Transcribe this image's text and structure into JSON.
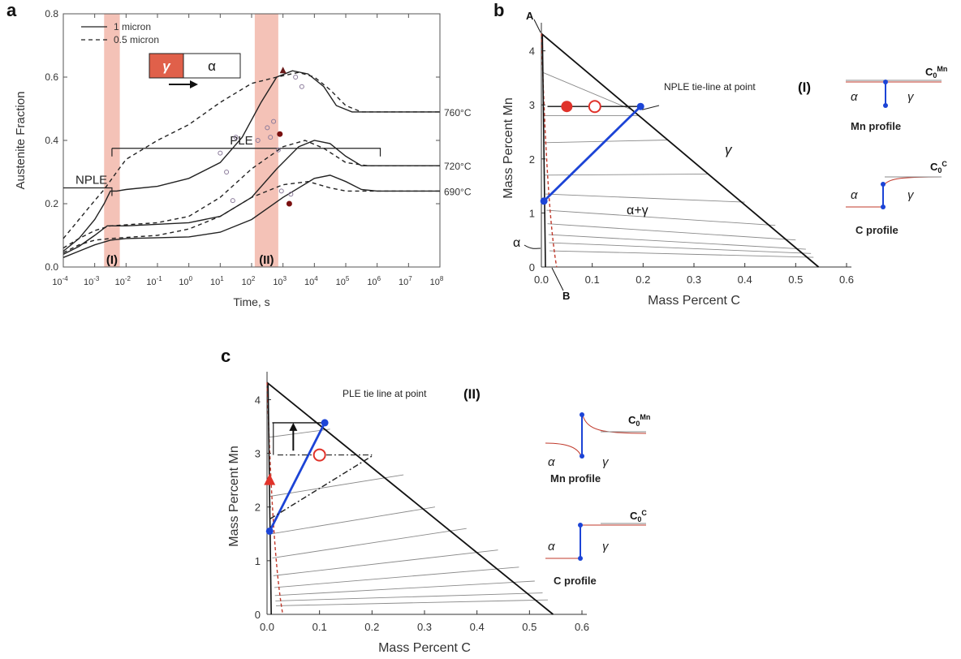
{
  "panel_letters": [
    "a",
    "b",
    "c"
  ],
  "chart_data": [
    {
      "panel": "a",
      "type": "line",
      "xscale": "log",
      "xlabel": "Time, s",
      "ylabel": "Austenite Fraction",
      "xlim_exp": [
        -4,
        8
      ],
      "ylim": [
        0,
        0.8
      ],
      "x_tick_base": "10",
      "x_tick_exponents": [
        "-4",
        "-3",
        "-2",
        "-1",
        "0",
        "1",
        "2",
        "3",
        "4",
        "5",
        "6",
        "7",
        "8"
      ],
      "y_tick_values": [
        0,
        0.2,
        0.4,
        0.6,
        0.8
      ],
      "y_tick_labels": [
        "0.0",
        "0.2",
        "0.4",
        "0.6",
        "0.8"
      ],
      "legend": [
        {
          "label": "1 micron",
          "style": "solid"
        },
        {
          "label": "0.5 micron",
          "style": "dashed"
        }
      ],
      "inset_labels": [
        "γ",
        "α"
      ],
      "shaded_regions": [
        {
          "label": "(I)",
          "x_exp": [
            -2.7,
            -2.2
          ]
        },
        {
          "label": "(II)",
          "x_exp": [
            2.1,
            2.85
          ]
        }
      ],
      "brackets": [
        {
          "label": "NPLE",
          "x_exp": [
            -4,
            -2.45
          ],
          "y": 0.25
        },
        {
          "label": "PLE",
          "x_exp": [
            -2.45,
            6.1
          ],
          "y": 0.375
        }
      ],
      "temperature_labels": [
        {
          "label": "760°C",
          "y": 0.49
        },
        {
          "label": "720°C",
          "y": 0.32
        },
        {
          "label": "690°C",
          "y": 0.24
        }
      ],
      "series": [
        {
          "name": "760°C 1 micron",
          "style": "solid",
          "points": [
            [
              -4,
              0.05
            ],
            [
              -3.5,
              0.09
            ],
            [
              -3,
              0.15
            ],
            [
              -2.7,
              0.2
            ],
            [
              -2.5,
              0.24
            ],
            [
              -2.3,
              0.24
            ],
            [
              -2,
              0.245
            ],
            [
              -1,
              0.255
            ],
            [
              0,
              0.28
            ],
            [
              1,
              0.33
            ],
            [
              1.7,
              0.41
            ],
            [
              2.3,
              0.52
            ],
            [
              2.8,
              0.6
            ],
            [
              3.3,
              0.62
            ],
            [
              3.8,
              0.61
            ],
            [
              4.3,
              0.57
            ],
            [
              4.7,
              0.51
            ],
            [
              5.2,
              0.49
            ],
            [
              8,
              0.49
            ]
          ]
        },
        {
          "name": "760°C 0.5 micron",
          "style": "dashed",
          "points": [
            [
              -4,
              0.09
            ],
            [
              -3.5,
              0.15
            ],
            [
              -3,
              0.21
            ],
            [
              -2.7,
              0.245
            ],
            [
              -2.3,
              0.3
            ],
            [
              -2,
              0.34
            ],
            [
              -1,
              0.4
            ],
            [
              0,
              0.45
            ],
            [
              1,
              0.52
            ],
            [
              2,
              0.58
            ],
            [
              2.8,
              0.6
            ],
            [
              3.5,
              0.615
            ],
            [
              4,
              0.6
            ],
            [
              4.5,
              0.56
            ],
            [
              5,
              0.51
            ],
            [
              5.5,
              0.49
            ],
            [
              8,
              0.49
            ]
          ]
        },
        {
          "name": "720°C 1 micron",
          "style": "solid",
          "points": [
            [
              -4,
              0.04
            ],
            [
              -3.5,
              0.065
            ],
            [
              -3,
              0.1
            ],
            [
              -2.6,
              0.13
            ],
            [
              -2,
              0.13
            ],
            [
              0,
              0.14
            ],
            [
              1,
              0.16
            ],
            [
              2,
              0.22
            ],
            [
              2.8,
              0.31
            ],
            [
              3.5,
              0.38
            ],
            [
              4,
              0.4
            ],
            [
              4.5,
              0.39
            ],
            [
              5,
              0.35
            ],
            [
              5.5,
              0.32
            ],
            [
              8,
              0.32
            ]
          ]
        },
        {
          "name": "720°C 0.5 micron",
          "style": "dashed",
          "points": [
            [
              -4,
              0.06
            ],
            [
              -3.5,
              0.09
            ],
            [
              -3,
              0.115
            ],
            [
              -2.5,
              0.13
            ],
            [
              -1,
              0.14
            ],
            [
              0,
              0.16
            ],
            [
              1,
              0.22
            ],
            [
              2,
              0.31
            ],
            [
              3,
              0.38
            ],
            [
              3.7,
              0.4
            ],
            [
              4.3,
              0.375
            ],
            [
              5,
              0.33
            ],
            [
              5.7,
              0.32
            ],
            [
              8,
              0.32
            ]
          ]
        },
        {
          "name": "690°C 1 micron",
          "style": "solid",
          "points": [
            [
              -4,
              0.03
            ],
            [
              -3.5,
              0.05
            ],
            [
              -3,
              0.07
            ],
            [
              -2.5,
              0.085
            ],
            [
              -2,
              0.09
            ],
            [
              0,
              0.095
            ],
            [
              1,
              0.11
            ],
            [
              2,
              0.15
            ],
            [
              3,
              0.22
            ],
            [
              4,
              0.28
            ],
            [
              4.5,
              0.29
            ],
            [
              5,
              0.27
            ],
            [
              5.5,
              0.245
            ],
            [
              6,
              0.24
            ],
            [
              8,
              0.24
            ]
          ]
        },
        {
          "name": "690°C 0.5 micron",
          "style": "dashed",
          "points": [
            [
              -4,
              0.045
            ],
            [
              -3.5,
              0.07
            ],
            [
              -3,
              0.085
            ],
            [
              -2.5,
              0.09
            ],
            [
              -1,
              0.1
            ],
            [
              0,
              0.12
            ],
            [
              1,
              0.16
            ],
            [
              2,
              0.22
            ],
            [
              3,
              0.26
            ],
            [
              3.8,
              0.27
            ],
            [
              4.5,
              0.25
            ],
            [
              5,
              0.24
            ],
            [
              8,
              0.24
            ]
          ]
        }
      ],
      "markers": [
        {
          "x_exp": 3,
          "y": 0.62,
          "shape": "triangle"
        },
        {
          "x_exp": 2.9,
          "y": 0.42,
          "shape": "dot"
        },
        {
          "x_exp": 3.2,
          "y": 0.2,
          "shape": "dot"
        }
      ]
    },
    {
      "panel": "b",
      "type": "scatter",
      "xlabel": "Mass Percent C",
      "ylabel": "Mass Percent Mn",
      "xlim": [
        0,
        0.6
      ],
      "ylim": [
        0,
        4.4
      ],
      "x_tick_values": [
        0,
        0.1,
        0.2,
        0.3,
        0.4,
        0.5,
        0.6
      ],
      "x_tick_labels": [
        "0.0",
        "0.1",
        "0.2",
        "0.3",
        "0.4",
        "0.5",
        "0.6"
      ],
      "y_tick_values": [
        0,
        1,
        2,
        3,
        4
      ],
      "y_tick_labels": [
        "0",
        "1",
        "2",
        "3",
        "4"
      ],
      "phase_boundary": [
        [
          0,
          4.32
        ],
        [
          0.545,
          0
        ]
      ],
      "alpha_boundary": [
        [
          0,
          4.32
        ],
        [
          0.03,
          0
        ]
      ],
      "tie_lines": [
        [
          [
            0.003,
            3.6
          ],
          [
            0.18,
            2.9
          ]
        ],
        [
          [
            0.004,
            2.8
          ],
          [
            0.19,
            2.8
          ]
        ],
        [
          [
            0.005,
            2.3
          ],
          [
            0.25,
            2.35
          ]
        ],
        [
          [
            0.006,
            1.7
          ],
          [
            0.33,
            1.72
          ]
        ],
        [
          [
            0.008,
            1.35
          ],
          [
            0.4,
            1.2
          ]
        ],
        [
          [
            0.01,
            1.05
          ],
          [
            0.46,
            0.77
          ]
        ],
        [
          [
            0.012,
            0.8
          ],
          [
            0.5,
            0.5
          ]
        ],
        [
          [
            0.014,
            0.6
          ],
          [
            0.52,
            0.33
          ]
        ],
        [
          [
            0.015,
            0.45
          ],
          [
            0.53,
            0.25
          ]
        ],
        [
          [
            0.016,
            0.3
          ],
          [
            0.535,
            0.18
          ]
        ]
      ],
      "highlight_tie_line": {
        "from": [
          0.005,
          1.22
        ],
        "to": [
          0.195,
          2.97
        ],
        "label": "NPLE tie-line at point",
        "roman": "(I)"
      },
      "start_point_filled": [
        0.05,
        2.97
      ],
      "start_point_open": [
        0.105,
        2.97
      ],
      "horizontal_line": {
        "from": [
          0.012,
          2.97
        ],
        "to": [
          0.195,
          2.97
        ]
      },
      "labels": {
        "A": "A",
        "B": "B",
        "alpha": "α",
        "gamma": "γ",
        "two_phase": "α+γ"
      }
    },
    {
      "panel": "c",
      "type": "scatter",
      "xlabel": "Mass Percent C",
      "ylabel": "Mass Percent Mn",
      "xlim": [
        0,
        0.6
      ],
      "ylim": [
        0,
        4.4
      ],
      "x_tick_values": [
        0,
        0.1,
        0.2,
        0.3,
        0.4,
        0.5,
        0.6
      ],
      "x_tick_labels": [
        "0.0",
        "0.1",
        "0.2",
        "0.3",
        "0.4",
        "0.5",
        "0.6"
      ],
      "y_tick_values": [
        0,
        1,
        2,
        3,
        4
      ],
      "y_tick_labels": [
        "0",
        "1",
        "2",
        "3",
        "4"
      ],
      "phase_boundary": [
        [
          0,
          4.32
        ],
        [
          0.545,
          0
        ]
      ],
      "alpha_boundary": [
        [
          0,
          4.32
        ],
        [
          0.03,
          0
        ]
      ],
      "tie_lines": [
        [
          [
            0.004,
            3.3
          ],
          [
            0.12,
            3.45
          ]
        ],
        [
          [
            0.006,
            2.2
          ],
          [
            0.26,
            2.6
          ]
        ],
        [
          [
            0.008,
            1.5
          ],
          [
            0.32,
            2.0
          ]
        ],
        [
          [
            0.01,
            1.05
          ],
          [
            0.38,
            1.6
          ]
        ],
        [
          [
            0.012,
            0.72
          ],
          [
            0.44,
            1.2
          ]
        ],
        [
          [
            0.014,
            0.5
          ],
          [
            0.48,
            0.88
          ]
        ],
        [
          [
            0.015,
            0.35
          ],
          [
            0.51,
            0.62
          ]
        ],
        [
          [
            0.016,
            0.25
          ],
          [
            0.525,
            0.4
          ]
        ],
        [
          [
            0.017,
            0.16
          ],
          [
            0.535,
            0.27
          ]
        ]
      ],
      "highlight_tie_line": {
        "from": [
          0.005,
          1.55
        ],
        "to": [
          0.11,
          3.57
        ],
        "label": "PLE tie line at point",
        "roman": "(II)"
      },
      "dashdot_tie_line": {
        "from": [
          0.006,
          1.78
        ],
        "to": [
          0.2,
          2.95
        ]
      },
      "start_point_filled": [
        0.005,
        2.5
      ],
      "start_point_open": [
        0.1,
        2.97
      ],
      "horizontal_line": {
        "from": [
          0.01,
          3.57
        ],
        "to": [
          0.11,
          3.57
        ]
      },
      "dashdot_horizontal": {
        "from": [
          0.02,
          2.97
        ],
        "to": [
          0.2,
          2.97
        ]
      }
    }
  ],
  "profiles": {
    "b_mn": {
      "label": "Mn profile",
      "left": "α",
      "right": "γ",
      "c0": "C",
      "c0_sub": "0",
      "c0_sup": "Mn"
    },
    "b_c": {
      "label": "C profile",
      "left": "α",
      "right": "γ",
      "c0": "C",
      "c0_sub": "0",
      "c0_sup": "C"
    },
    "c_mn": {
      "label": "Mn profile",
      "left": "α",
      "right": "γ",
      "c0": "C",
      "c0_sub": "0",
      "c0_sup": "Mn"
    },
    "c_c": {
      "label": "C profile",
      "left": "α",
      "right": "γ",
      "c0": "C",
      "c0_sub": "0",
      "c0_sup": "C"
    }
  },
  "colors": {
    "shade": "#f2b7aa",
    "red": "#e0322a",
    "blue": "#1c44d6",
    "gray": "#8a8a8a",
    "inset_gamma": "#e0604a"
  }
}
